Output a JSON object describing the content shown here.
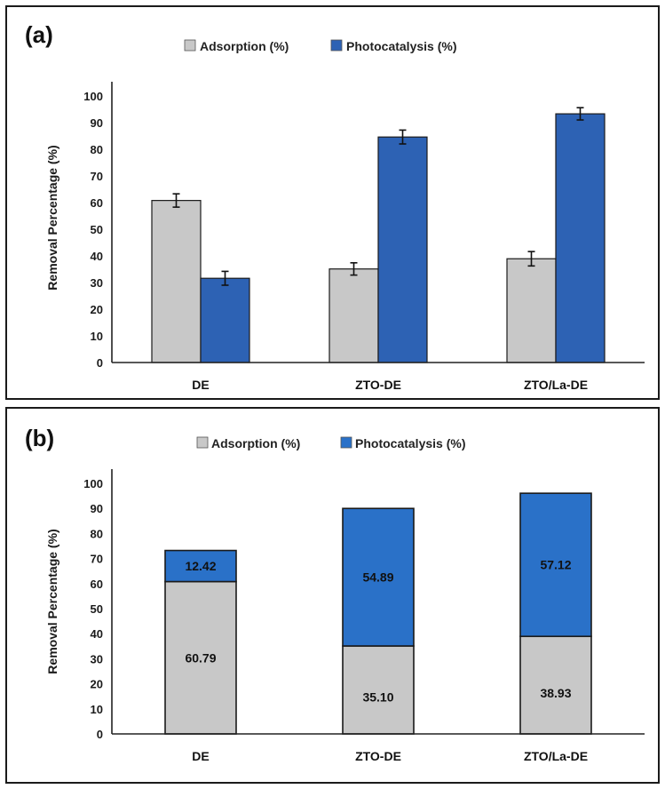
{
  "colors": {
    "adsorption": "#c8c8c8",
    "photocatalysis_a": "#2d62b4",
    "photocatalysis_b": "#2a71c8",
    "outline": "#1a1a1a"
  },
  "chart_data": [
    {
      "type": "bar",
      "panel_label": "(a)",
      "categories": [
        "DE",
        "ZTO-DE",
        "ZTO/La-DE"
      ],
      "series": [
        {
          "name": "Adsorption (%)",
          "values": [
            60.79,
            35.1,
            38.93
          ],
          "errors": [
            2.5,
            2.3,
            2.7
          ]
        },
        {
          "name": "Photocatalysis (%)",
          "values": [
            31.6,
            84.6,
            93.3
          ],
          "errors": [
            2.6,
            2.6,
            2.3
          ]
        }
      ],
      "xlabel": "",
      "ylabel": "Removal Percentage (%)",
      "ylim": [
        0,
        100
      ],
      "yticks": [
        "0",
        "10",
        "20",
        "30",
        "40",
        "50",
        "60",
        "70",
        "80",
        "90",
        "100"
      ],
      "legend": "top-center"
    },
    {
      "type": "stacked-bar",
      "panel_label": "(b)",
      "categories": [
        "DE",
        "ZTO-DE",
        "ZTO/La-DE"
      ],
      "series": [
        {
          "name": "Adsorption (%)",
          "values": [
            60.79,
            35.1,
            38.93
          ],
          "labels": [
            "60.79",
            "35.10",
            "38.93"
          ]
        },
        {
          "name": "Photocatalysis (%)",
          "values": [
            12.42,
            54.89,
            57.12
          ],
          "labels": [
            "12.42",
            "54.89",
            "57.12"
          ]
        }
      ],
      "xlabel": "",
      "ylabel": "Removal Percentage (%)",
      "ylim": [
        0,
        100
      ],
      "yticks": [
        "0",
        "10",
        "20",
        "30",
        "40",
        "50",
        "60",
        "70",
        "80",
        "90",
        "100"
      ],
      "legend": "top-center"
    }
  ]
}
